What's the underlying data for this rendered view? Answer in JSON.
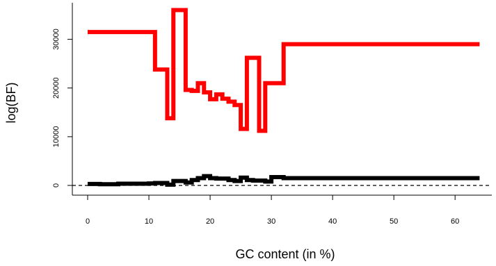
{
  "chart_data": {
    "type": "line",
    "xlabel": "GC content (in %)",
    "ylabel": "log(BF)",
    "xlim": [
      -2.5,
      66
    ],
    "ylim": [
      -2000,
      37500
    ],
    "x_ticks": [
      0,
      10,
      20,
      30,
      40,
      50,
      60
    ],
    "y_ticks": [
      0,
      10000,
      20000,
      30000
    ],
    "x_tick_labels": [
      "0",
      "10",
      "20",
      "30",
      "40",
      "50",
      "60"
    ],
    "y_tick_labels": [
      "0",
      "10000",
      "20000",
      "30000"
    ],
    "step": true,
    "reference_line": {
      "y": 0,
      "style": "dashed",
      "color": "#000000"
    },
    "series": [
      {
        "color": "#ff0000",
        "x": [
          0,
          11,
          13,
          14,
          16,
          17,
          18,
          19,
          20,
          21,
          22,
          23,
          24,
          25,
          26,
          28,
          29,
          32,
          64
        ],
        "values": [
          31500,
          23800,
          13800,
          36000,
          19600,
          19400,
          21000,
          19100,
          17700,
          18700,
          17800,
          17200,
          16500,
          11600,
          26200,
          11200,
          21000,
          29000,
          29000
        ]
      },
      {
        "color": "#000000",
        "x": [
          0,
          2,
          5,
          10,
          11,
          13,
          14,
          16,
          17,
          18,
          19,
          20,
          21,
          23,
          24,
          25,
          26,
          27,
          29,
          30,
          32,
          64
        ],
        "values": [
          300,
          250,
          350,
          400,
          500,
          150,
          900,
          600,
          1100,
          1500,
          1900,
          1500,
          1400,
          1100,
          900,
          1600,
          1100,
          1000,
          800,
          1700,
          1500,
          1500
        ]
      }
    ]
  }
}
